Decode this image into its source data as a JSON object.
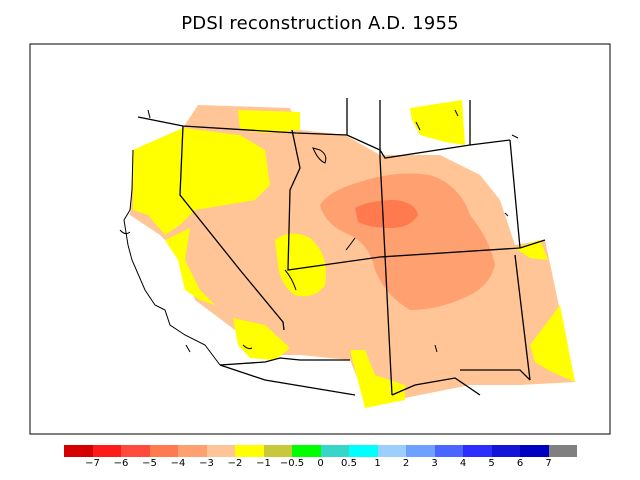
{
  "title": "PDSI reconstruction A.D. 1955",
  "legend": {
    "colors": [
      "#d40000",
      "#ff1a1a",
      "#ff4a3d",
      "#ff7a4f",
      "#ffa070",
      "#ffc596",
      "#ffff00",
      "#c8c83c",
      "#00ff00",
      "#38d6c8",
      "#00ffff",
      "#9ccfff",
      "#6ea0ff",
      "#4a66ff",
      "#2d2dff",
      "#1414d8",
      "#0000c0",
      "#808080"
    ],
    "ticks": [
      "−7",
      "−6",
      "−5",
      "−4",
      "−3",
      "−2",
      "−1",
      "−0.5",
      "0",
      "0.5",
      "1",
      "2",
      "3",
      "4",
      "5",
      "6",
      "7"
    ]
  },
  "colors": {
    "yellow": "#ffff00",
    "light_orange": "#ffc596",
    "medium_orange": "#ffa070",
    "dark_orange": "#ff7a4f"
  }
}
